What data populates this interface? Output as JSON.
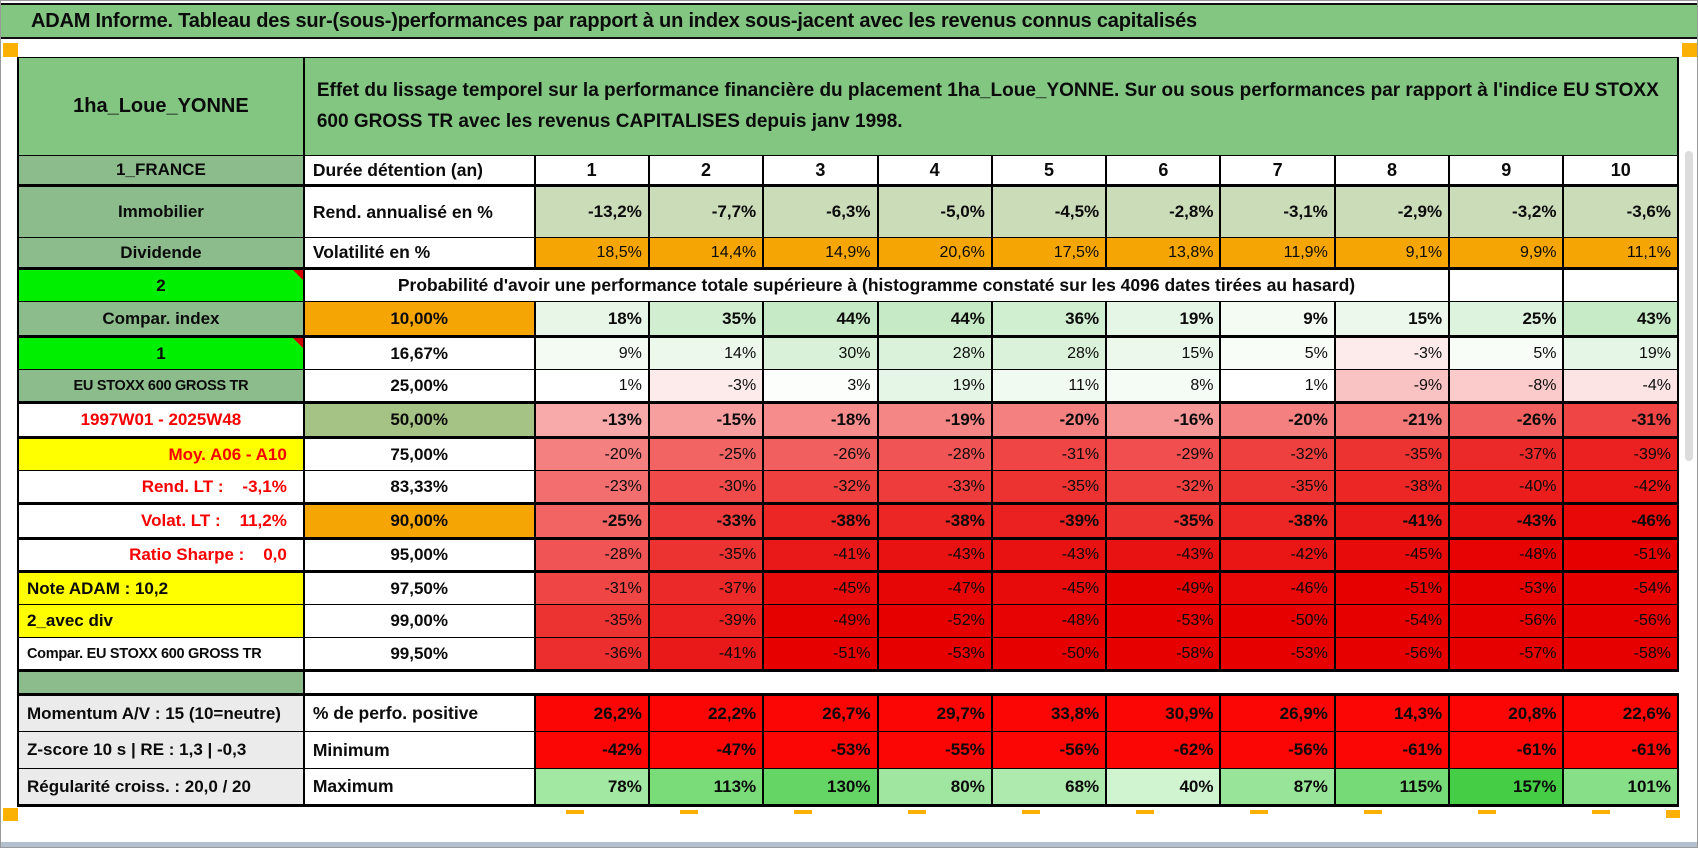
{
  "title_bar": {
    "text": "ADAM Informe. Tableau des sur-(sous-)performances par rapport à un index sous-jacent avec les revenus connus capitalisés"
  },
  "header": {
    "asset": "1ha_Loue_YONNE",
    "description": "Effet du lissage temporel sur la performance financière du placement 1ha_Loue_YONNE. Sur ou sous performances par rapport à l'indice EU STOXX 600 GROSS TR avec les revenus CAPITALISES depuis janv 1998."
  },
  "colors": {
    "header_green": "#82C682",
    "label_green": "#8CBC8C",
    "lime_green": "#00EE00",
    "orange": "#F6A604",
    "yellow": "#FFFF00",
    "sage_row": "#CBDCB9",
    "sage_cell": "#A6C386",
    "red_cell": "#FB0505",
    "gray_label": "#EBEBEB",
    "red_label_text": "#F80000",
    "marker_orange": "#FBB103"
  },
  "table": {
    "columns": [
      "1",
      "2",
      "3",
      "4",
      "5",
      "6",
      "7",
      "8",
      "9",
      "10"
    ],
    "rows": [
      {
        "type": "values",
        "label": "1_FRANCE",
        "label_bg": "green",
        "b": "Durée détention (an)",
        "b_kind": "label",
        "v_kind": "years",
        "bold": true,
        "thick_bottom": true,
        "values": [
          "1",
          "2",
          "3",
          "4",
          "5",
          "6",
          "7",
          "8",
          "9",
          "10"
        ]
      },
      {
        "type": "values",
        "label": "Immobilier",
        "label_bg": "green",
        "b": "Rend. annualisé en %",
        "b_kind": "label",
        "v_kind": "sage",
        "bold": true,
        "values": [
          "-13,2%",
          "-7,7%",
          "-6,3%",
          "-5,0%",
          "-4,5%",
          "-2,8%",
          "-3,1%",
          "-2,9%",
          "-3,2%",
          "-3,6%"
        ]
      },
      {
        "type": "values",
        "label": "Dividende",
        "label_bg": "green",
        "b": "Volatilité en %",
        "b_kind": "label",
        "v_kind": "orange",
        "thick_bottom": true,
        "values": [
          "18,5%",
          "14,4%",
          "14,9%",
          "20,6%",
          "17,5%",
          "13,8%",
          "11,9%",
          "9,1%",
          "9,9%",
          "11,1%"
        ]
      },
      {
        "type": "span",
        "label": "2",
        "label_bg": "lime",
        "comment": true,
        "empty_cells": 2,
        "span_text": "Probabilité d'avoir une performance totale supérieure à (histogramme constaté sur les 4096 dates tirées au hasard)"
      },
      {
        "type": "values",
        "label": "Compar. index",
        "label_bg": "green",
        "b": "10,00%",
        "b_kind": "pct",
        "b_bg": "orange",
        "v_kind": "prob",
        "bold": true,
        "thick_bottom": true,
        "values": [
          "18%",
          "35%",
          "44%",
          "44%",
          "36%",
          "19%",
          "9%",
          "15%",
          "25%",
          "43%"
        ]
      },
      {
        "type": "values",
        "label": "1",
        "label_bg": "lime",
        "comment": true,
        "b": "16,67%",
        "b_kind": "pct",
        "v_kind": "prob",
        "values": [
          "9%",
          "14%",
          "30%",
          "28%",
          "28%",
          "15%",
          "5%",
          "-3%",
          "5%",
          "19%"
        ]
      },
      {
        "type": "values",
        "label": "EU STOXX 600 GROSS TR",
        "label_bg": "green",
        "label_small": true,
        "b": "25,00%",
        "b_kind": "pct",
        "v_kind": "prob",
        "values": [
          "1%",
          "-3%",
          "3%",
          "19%",
          "11%",
          "8%",
          "1%",
          "-9%",
          "-8%",
          "-4%"
        ]
      },
      {
        "type": "values",
        "label": "1997W01 - 2025W48",
        "label_color": "red",
        "b": "50,00%",
        "b_kind": "pct",
        "b_bg": "sage",
        "v_kind": "prob",
        "bold": true,
        "thick_top": true,
        "thick_bottom": true,
        "values": [
          "-13%",
          "-15%",
          "-18%",
          "-19%",
          "-20%",
          "-16%",
          "-20%",
          "-21%",
          "-26%",
          "-31%"
        ]
      },
      {
        "type": "values",
        "label": "Moy. A06 - A10",
        "label_bg": "yellow",
        "label_color": "red",
        "label_align": "right",
        "b": "75,00%",
        "b_kind": "pct",
        "v_kind": "prob",
        "values": [
          "-20%",
          "-25%",
          "-26%",
          "-28%",
          "-31%",
          "-29%",
          "-32%",
          "-35%",
          "-37%",
          "-39%"
        ]
      },
      {
        "type": "values",
        "label": "Rend. LT :    -3,1%",
        "label_color": "red",
        "label_align": "right",
        "b": "83,33%",
        "b_kind": "pct",
        "v_kind": "prob",
        "values": [
          "-23%",
          "-30%",
          "-32%",
          "-33%",
          "-35%",
          "-32%",
          "-35%",
          "-38%",
          "-40%",
          "-42%"
        ]
      },
      {
        "type": "values",
        "label": "Volat. LT :    11,2%",
        "label_color": "red",
        "label_align": "right",
        "b": "90,00%",
        "b_kind": "pct",
        "b_bg": "orange",
        "v_kind": "prob",
        "bold": true,
        "thick_top": true,
        "thick_bottom": true,
        "values": [
          "-25%",
          "-33%",
          "-38%",
          "-38%",
          "-39%",
          "-35%",
          "-38%",
          "-41%",
          "-43%",
          "-46%"
        ]
      },
      {
        "type": "values",
        "label": "Ratio Sharpe :    0,0",
        "label_color": "red",
        "label_align": "right",
        "b": "95,00%",
        "b_kind": "pct",
        "v_kind": "prob",
        "values": [
          "-28%",
          "-35%",
          "-41%",
          "-43%",
          "-43%",
          "-43%",
          "-42%",
          "-45%",
          "-48%",
          "-51%"
        ]
      },
      {
        "type": "values",
        "label": "Note ADAM : 10,2",
        "label_bg": "yellow",
        "label_align": "left",
        "b": "97,50%",
        "b_kind": "pct",
        "v_kind": "prob",
        "thick_top": true,
        "values": [
          "-31%",
          "-37%",
          "-45%",
          "-47%",
          "-45%",
          "-49%",
          "-46%",
          "-51%",
          "-53%",
          "-54%"
        ]
      },
      {
        "type": "values",
        "label": "2_avec div",
        "label_bg": "yellow",
        "label_align": "left",
        "b": "99,00%",
        "b_kind": "pct",
        "v_kind": "prob",
        "values": [
          "-35%",
          "-39%",
          "-49%",
          "-52%",
          "-48%",
          "-53%",
          "-50%",
          "-54%",
          "-56%",
          "-56%"
        ]
      },
      {
        "type": "values",
        "label": "Compar. EU STOXX 600 GROSS TR",
        "label_align": "left",
        "label_small": true,
        "b": "99,50%",
        "b_kind": "pct",
        "v_kind": "prob",
        "thick_bottom": true,
        "values": [
          "-36%",
          "-41%",
          "-51%",
          "-53%",
          "-50%",
          "-58%",
          "-53%",
          "-56%",
          "-57%",
          "-58%"
        ]
      },
      {
        "type": "spacer"
      },
      {
        "type": "values",
        "label": "Momentum A/V : 15 (10=neutre)",
        "label_bg": "gray",
        "label_align": "left",
        "b": "% de perfo. positive",
        "b_kind": "label",
        "v_kind": "red",
        "bold": true,
        "thick_top": true,
        "values": [
          "26,2%",
          "22,2%",
          "26,7%",
          "29,7%",
          "33,8%",
          "30,9%",
          "26,9%",
          "14,3%",
          "20,8%",
          "22,6%"
        ]
      },
      {
        "type": "values",
        "label": "Z-score 10 s | RE : 1,3 | -0,3",
        "label_bg": "gray",
        "label_align": "left",
        "b": "Minimum",
        "b_kind": "label",
        "v_kind": "red",
        "bold": true,
        "values": [
          "-42%",
          "-47%",
          "-53%",
          "-55%",
          "-56%",
          "-62%",
          "-56%",
          "-61%",
          "-61%",
          "-61%"
        ]
      },
      {
        "type": "values",
        "label": "Régularité croiss. : 20,0 / 20",
        "label_bg": "gray",
        "label_align": "left",
        "b": "Maximum",
        "b_kind": "label",
        "v_kind": "max",
        "bold": true,
        "thick_bottom": true,
        "values": [
          "78%",
          "113%",
          "130%",
          "80%",
          "68%",
          "40%",
          "87%",
          "115%",
          "157%",
          "101%"
        ]
      }
    ]
  }
}
